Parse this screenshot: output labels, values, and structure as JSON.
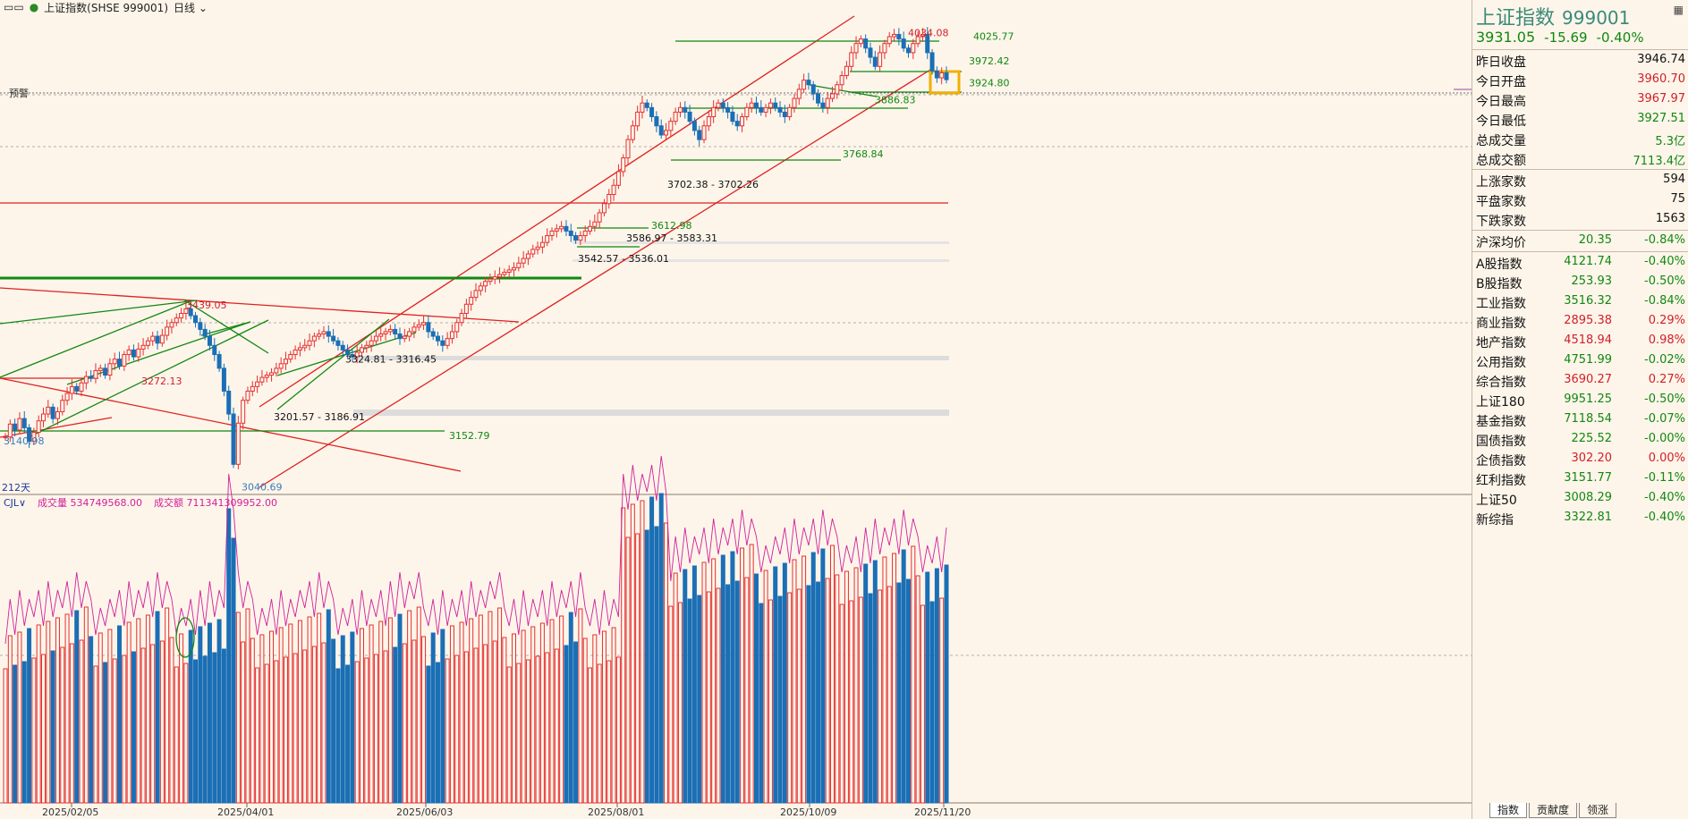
{
  "topbar": {
    "title": "上证指数(SHSE 999001)",
    "period": "日线"
  },
  "panel": {
    "name": "上证指数",
    "code": "999001",
    "price": "3931.05",
    "change": "-15.69",
    "pct": "-0.40%",
    "stats": [
      {
        "label": "昨日收盘",
        "value": "3946.74",
        "color": "#111111"
      },
      {
        "label": "今日开盘",
        "value": "3960.70",
        "color": "#d0202a"
      },
      {
        "label": "今日最高",
        "value": "3967.97",
        "color": "#d0202a"
      },
      {
        "label": "今日最低",
        "value": "3927.51",
        "color": "#118811"
      },
      {
        "label": "总成交量",
        "value": "5.3亿",
        "color": "#118811"
      },
      {
        "label": "总成交额",
        "value": "7113.4亿",
        "color": "#118811"
      }
    ],
    "breadth": [
      {
        "label": "上涨家数",
        "value": "594",
        "color": "#111111"
      },
      {
        "label": "平盘家数",
        "value": "75",
        "color": "#111111"
      },
      {
        "label": "下跌家数",
        "value": "1563",
        "color": "#111111"
      }
    ],
    "avg": {
      "label": "沪深均价",
      "value": "20.35",
      "pct": "-0.84%",
      "color": "#118811"
    },
    "indices": [
      {
        "label": "A股指数",
        "value": "4121.74",
        "pct": "-0.40%",
        "color": "#118811"
      },
      {
        "label": "B股指数",
        "value": "253.93",
        "pct": "-0.50%",
        "color": "#118811"
      },
      {
        "label": "工业指数",
        "value": "3516.32",
        "pct": "-0.84%",
        "color": "#118811"
      },
      {
        "label": "商业指数",
        "value": "2895.38",
        "pct": "0.29%",
        "color": "#d0202a"
      },
      {
        "label": "地产指数",
        "value": "4518.94",
        "pct": "0.98%",
        "color": "#d0202a"
      },
      {
        "label": "公用指数",
        "value": "4751.99",
        "pct": "-0.02%",
        "color": "#118811"
      },
      {
        "label": "综合指数",
        "value": "3690.27",
        "pct": "0.27%",
        "color": "#d0202a"
      },
      {
        "label": "上证180",
        "value": "9951.25",
        "pct": "-0.50%",
        "color": "#118811"
      },
      {
        "label": "基金指数",
        "value": "7118.54",
        "pct": "-0.07%",
        "color": "#118811"
      },
      {
        "label": "国债指数",
        "value": "225.52",
        "pct": "-0.00%",
        "color": "#118811"
      },
      {
        "label": "企债指数",
        "value": "302.20",
        "pct": "0.00%",
        "color": "#d0202a"
      },
      {
        "label": "红利指数",
        "value": "3151.77",
        "pct": "-0.11%",
        "color": "#118811"
      },
      {
        "label": "上证50",
        "value": "3008.29",
        "pct": "-0.40%",
        "color": "#118811"
      },
      {
        "label": "新综指",
        "value": "3322.81",
        "pct": "-0.40%",
        "color": "#118811"
      }
    ],
    "tabs": [
      "指数",
      "贡献度",
      "领涨"
    ]
  },
  "chart_data": {
    "type": "candlestick",
    "ylim": [
      3030,
      4070
    ],
    "x_tick_labels": [
      "2025/02/05",
      "2025/04/01",
      "2025/06/03",
      "2025/08/01",
      "2025/10/09",
      "2025/11/20"
    ],
    "days_label": "212天",
    "alert_label": "预警",
    "closes": [
      3150,
      3178,
      3165,
      3190,
      3170,
      3140,
      3160,
      3185,
      3200,
      3215,
      3190,
      3205,
      3230,
      3245,
      3260,
      3250,
      3268,
      3282,
      3278,
      3295,
      3300,
      3285,
      3310,
      3320,
      3305,
      3330,
      3340,
      3325,
      3342,
      3350,
      3360,
      3370,
      3355,
      3372,
      3390,
      3400,
      3410,
      3420,
      3430,
      3415,
      3400,
      3385,
      3370,
      3350,
      3330,
      3300,
      3250,
      3200,
      3090,
      3180,
      3230,
      3250,
      3260,
      3270,
      3280,
      3285,
      3290,
      3300,
      3310,
      3320,
      3330,
      3340,
      3345,
      3350,
      3360,
      3370,
      3375,
      3380,
      3370,
      3360,
      3350,
      3340,
      3330,
      3325,
      3335,
      3345,
      3350,
      3360,
      3370,
      3375,
      3380,
      3385,
      3375,
      3365,
      3370,
      3380,
      3390,
      3395,
      3400,
      3380,
      3370,
      3360,
      3350,
      3365,
      3380,
      3400,
      3420,
      3440,
      3455,
      3470,
      3480,
      3490,
      3495,
      3500,
      3505,
      3510,
      3515,
      3520,
      3530,
      3540,
      3550,
      3560,
      3565,
      3575,
      3590,
      3600,
      3605,
      3610,
      3600,
      3590,
      3580,
      3590,
      3600,
      3610,
      3620,
      3640,
      3660,
      3680,
      3700,
      3730,
      3760,
      3800,
      3830,
      3860,
      3880,
      3870,
      3850,
      3830,
      3810,
      3820,
      3840,
      3860,
      3870,
      3860,
      3840,
      3820,
      3800,
      3830,
      3850,
      3870,
      3880,
      3870,
      3860,
      3840,
      3830,
      3850,
      3870,
      3880,
      3870,
      3860,
      3870,
      3880,
      3870,
      3860,
      3850,
      3870,
      3890,
      3910,
      3930,
      3920,
      3900,
      3880,
      3870,
      3890,
      3900,
      3920,
      3940,
      3960,
      3990,
      4010,
      4020,
      4000,
      3980,
      3960,
      3990,
      4010,
      4025,
      4030,
      4020,
      4000,
      3990,
      4010,
      4025,
      4030,
      3990,
      3950,
      3935,
      3946,
      3931
    ],
    "volume_series": {
      "name": "成交量",
      "value": "534749568.00"
    },
    "amount_series": {
      "name": "成交额",
      "value": "711341309952.00"
    },
    "volume_label": "CJL",
    "support_resistance": [
      {
        "text": "4034.08",
        "y": 4034,
        "color": "#d0202a"
      },
      {
        "text": "4025.77",
        "y": 4025.77,
        "color": "#118811"
      },
      {
        "text": "3972.42",
        "y": 3972.42,
        "color": "#118811"
      },
      {
        "text": "3924.80",
        "y": 3924.8,
        "color": "#118811"
      },
      {
        "text": "3886.83",
        "y": 3886.83,
        "color": "#118811"
      },
      {
        "text": "3768.84",
        "y": 3768.84,
        "color": "#118811"
      },
      {
        "text": "3702.38 - 3702.26",
        "y": 3702.3,
        "color": "#111111"
      },
      {
        "text": "3612.98",
        "y": 3612.98,
        "color": "#118811"
      },
      {
        "text": "3586.97 - 3583.31",
        "y": 3585,
        "color": "#111111"
      },
      {
        "text": "3542.57 - 3536.01",
        "y": 3540,
        "color": "#111111"
      },
      {
        "text": "3439.05",
        "y": 3439.05,
        "color": "#d0202a"
      },
      {
        "text": "3324.81 - 3316.45",
        "y": 3320,
        "color": "#111111"
      },
      {
        "text": "3272.13",
        "y": 3272.13,
        "color": "#d0202a"
      },
      {
        "text": "3201.57 - 3186.91",
        "y": 3194,
        "color": "#111111"
      },
      {
        "text": "3152.79",
        "y": 3152.79,
        "color": "#118811"
      },
      {
        "text": "3140.98",
        "y": 3140.98,
        "color": "#3a7ab8"
      },
      {
        "text": "3040.69",
        "y": 3040.69,
        "color": "#3a7ab8"
      }
    ]
  }
}
